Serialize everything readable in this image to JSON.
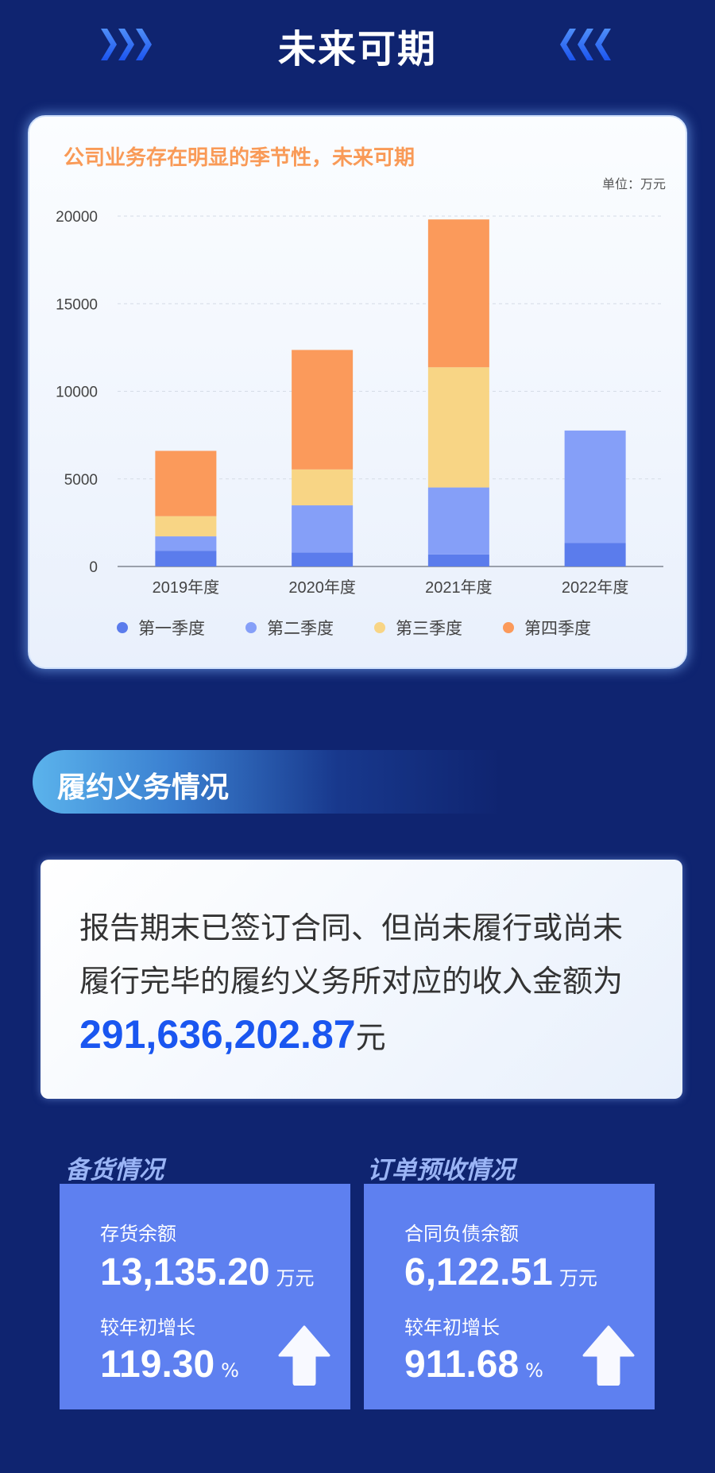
{
  "header": {
    "title": "未来可期"
  },
  "chart_data": {
    "type": "bar",
    "stacked": true,
    "title": "公司业务存在明显的季节性，未来可期",
    "unit": "单位：万元",
    "categories": [
      "2019年度",
      "2020年度",
      "2021年度",
      "2022年度"
    ],
    "series": [
      {
        "name": "第一季度",
        "color": "#5b7cec",
        "values": [
          900,
          800,
          690,
          1340
        ]
      },
      {
        "name": "第二季度",
        "color": "#859ff8",
        "values": [
          820,
          2690,
          3820,
          6420
        ]
      },
      {
        "name": "第三季度",
        "color": "#f8d585",
        "values": [
          1150,
          2050,
          6860,
          0
        ]
      },
      {
        "name": "第四季度",
        "color": "#fb9a5b",
        "values": [
          3730,
          6820,
          8440,
          0
        ]
      }
    ],
    "ylim": [
      0,
      20000
    ],
    "yticks": [
      "0",
      "5000",
      "10000",
      "15000",
      "20000"
    ],
    "grid": true,
    "legend": "bottom"
  },
  "obligation": {
    "title": "履约义务情况",
    "text": "报告期末已签订合同、但尚未履行或尚未履行完毕的履约义务所对应的收入金额为",
    "amount": "291,636,202.87",
    "unit": "元"
  },
  "inventory": {
    "title": "备货情况",
    "label": "存货余额",
    "value": "13,135.20",
    "unit": "万元",
    "growth_label": "较年初增长",
    "growth": "119.30",
    "growth_unit": "%"
  },
  "orders": {
    "title": "订单预收情况",
    "label": "合同负债余额",
    "value": "6,122.51",
    "unit": "万元",
    "growth_label": "较年初增长",
    "growth": "911.68",
    "growth_unit": "%"
  }
}
